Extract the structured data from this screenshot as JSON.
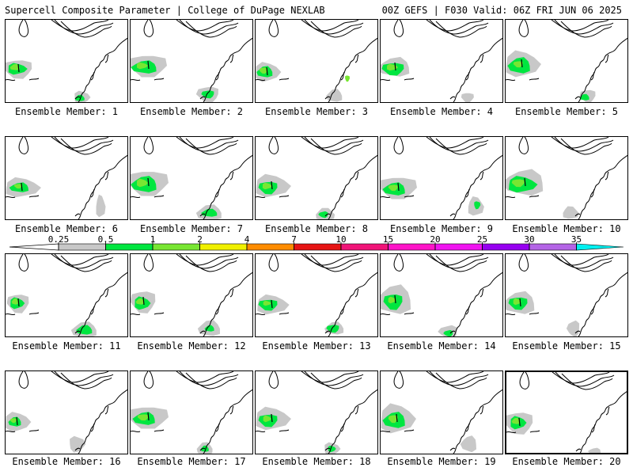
{
  "header": {
    "title_left": "Supercell Composite Parameter | College of DuPage NEXLAB",
    "title_right": "00Z GEFS | F030 Valid: 06Z FRI JUN 06 2025"
  },
  "members": [
    {
      "label": "Ensemble Member: 1"
    },
    {
      "label": "Ensemble Member: 2"
    },
    {
      "label": "Ensemble Member: 3"
    },
    {
      "label": "Ensemble Member: 4"
    },
    {
      "label": "Ensemble Member: 5"
    },
    {
      "label": "Ensemble Member: 6"
    },
    {
      "label": "Ensemble Member: 7"
    },
    {
      "label": "Ensemble Member: 8"
    },
    {
      "label": "Ensemble Member: 9"
    },
    {
      "label": "Ensemble Member: 10"
    },
    {
      "label": "Ensemble Member: 11"
    },
    {
      "label": "Ensemble Member: 12"
    },
    {
      "label": "Ensemble Member: 13"
    },
    {
      "label": "Ensemble Member: 14"
    },
    {
      "label": "Ensemble Member: 15"
    },
    {
      "label": "Ensemble Member: 16"
    },
    {
      "label": "Ensemble Member: 17"
    },
    {
      "label": "Ensemble Member: 18"
    },
    {
      "label": "Ensemble Member: 19"
    },
    {
      "label": "Ensemble Member: 20",
      "highlighted": true
    }
  ],
  "legend": {
    "ticks": [
      "0.25",
      "0.5",
      "1",
      "2",
      "4",
      "7",
      "10",
      "15",
      "20",
      "25",
      "30",
      "35"
    ],
    "colors": [
      "#c8c8c8",
      "#00e640",
      "#78e632",
      "#f0f000",
      "#ff8c00",
      "#e61414",
      "#f01478",
      "#ff14c8",
      "#f014f0",
      "#9600f0",
      "#b464e6",
      "#00f0f0"
    ]
  }
}
